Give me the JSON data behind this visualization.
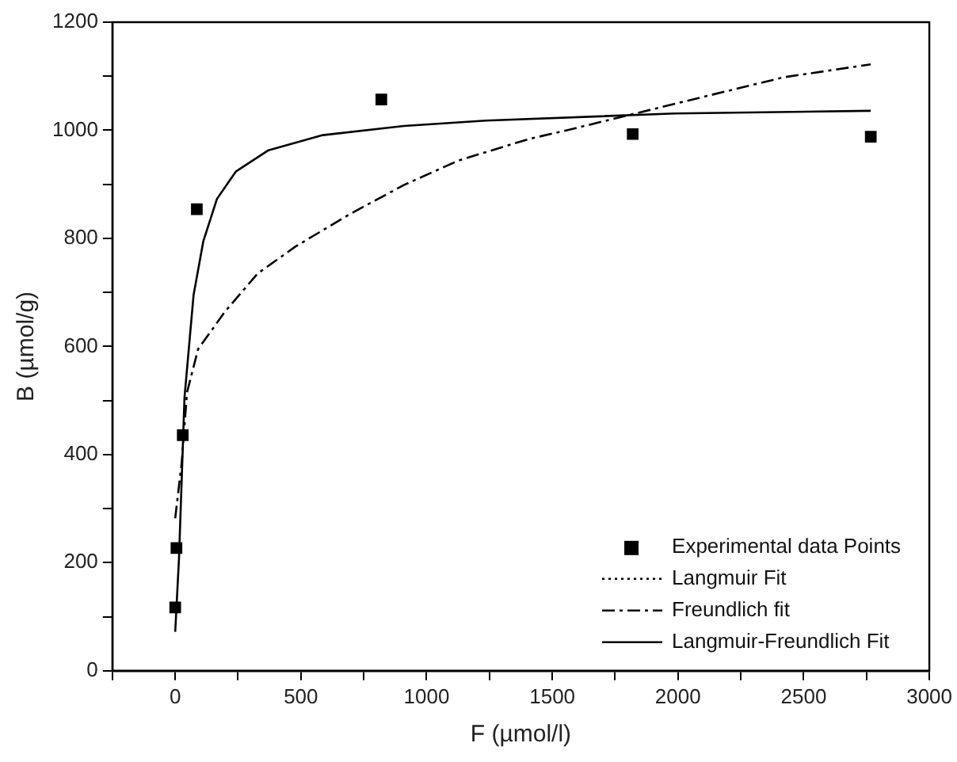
{
  "chart_data": {
    "type": "line",
    "xlabel": "F (µmol/l)",
    "ylabel": "B (µmol/g)",
    "xlim": [
      -250,
      3000
    ],
    "ylim": [
      0,
      1200
    ],
    "xticks": [
      {
        "value": -250,
        "label": null
      },
      0,
      {
        "value": 250,
        "label": null
      },
      500,
      {
        "value": 750,
        "label": null
      },
      1000,
      {
        "value": 1250,
        "label": null
      },
      1500,
      {
        "value": 1750,
        "label": null
      },
      2000,
      {
        "value": 2250,
        "label": null
      },
      2500,
      {
        "value": 2750,
        "label": null
      },
      3000
    ],
    "yticks": [
      0,
      {
        "value": 100,
        "label": null
      },
      200,
      {
        "value": 300,
        "label": null
      },
      400,
      {
        "value": 500,
        "label": null
      },
      600,
      {
        "value": 700,
        "label": null
      },
      800,
      {
        "value": 900,
        "label": null
      },
      1000,
      {
        "value": 1100,
        "label": null
      },
      1200
    ],
    "grid": false,
    "legend": "bottom right",
    "series": [
      {
        "name": "Experimental data Points",
        "type": "scatter",
        "marker": "square",
        "color": "#000000",
        "x": [
          0,
          5,
          30,
          86,
          820,
          1820,
          2767
        ],
        "values": [
          117,
          227,
          436,
          854,
          1057,
          993,
          988
        ]
      },
      {
        "name": "Langmuir Fit",
        "type": "line",
        "line_style": "dotted",
        "color": "#000000"
      },
      {
        "name": "Freundlich fit",
        "type": "line",
        "line_style": "dashdot",
        "color": "#000000",
        "x": [
          0,
          26,
          47,
          91,
          199,
          328,
          479,
          695,
          911,
          1127,
          1408,
          1558,
          1988,
          2420,
          2767
        ],
        "values": [
          282,
          386,
          515,
          595,
          665,
          735,
          785,
          845,
          899,
          944,
          984,
          1000,
          1049,
          1098,
          1122
        ]
      },
      {
        "name": "Langmuir-Freundlich Fit",
        "type": "line",
        "line_style": "solid",
        "color": "#000000",
        "x": [
          0,
          15,
          37,
          73,
          112,
          166,
          242,
          371,
          587,
          911,
          1235,
          1988,
          2767
        ],
        "values": [
          72,
          207,
          506,
          695,
          795,
          873,
          924,
          963,
          991,
          1008,
          1018,
          1031,
          1036
        ]
      }
    ]
  }
}
